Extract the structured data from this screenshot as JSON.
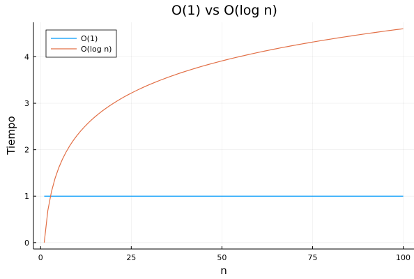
{
  "chart_data": {
    "type": "line",
    "title": "O(1) vs O(log n)",
    "xlabel": "n",
    "ylabel": "Tiempo",
    "xlim": [
      -1.97,
      102.97
    ],
    "ylim": [
      -0.138,
      4.743
    ],
    "xticks": [
      0,
      25,
      50,
      75,
      100
    ],
    "yticks": [
      0,
      1,
      2,
      3,
      4
    ],
    "grid": true,
    "legend_position": "top-left",
    "x": {
      "start": 1,
      "end": 100,
      "step": 1
    },
    "series": [
      {
        "name": "O(1)",
        "color": "#009AFA",
        "function": "constant",
        "constant": 1
      },
      {
        "name": "O(log n)",
        "color": "#E26F46",
        "function": "natural-log"
      }
    ]
  }
}
